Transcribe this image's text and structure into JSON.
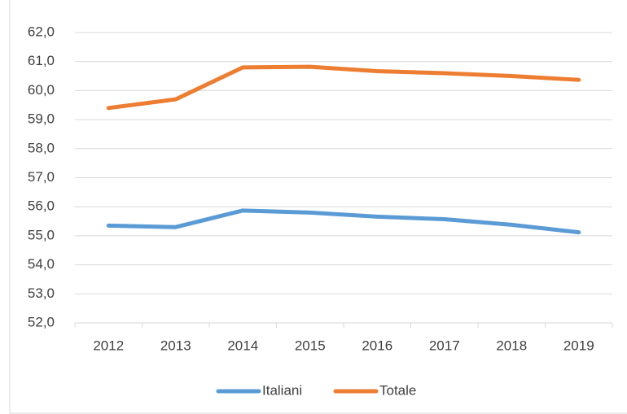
{
  "chart_data": {
    "type": "line",
    "categories": [
      "2012",
      "2013",
      "2014",
      "2015",
      "2016",
      "2017",
      "2018",
      "2019"
    ],
    "series": [
      {
        "name": "Italiani",
        "color": "#5b9bd5",
        "values": [
          55.35,
          55.3,
          55.87,
          55.8,
          55.66,
          55.57,
          55.38,
          55.12
        ]
      },
      {
        "name": "Totale",
        "color": "#ed7d31",
        "values": [
          59.4,
          59.7,
          60.8,
          60.82,
          60.67,
          60.6,
          60.5,
          60.37
        ]
      }
    ],
    "ylim": [
      52,
      62
    ],
    "yticks": [
      {
        "value": 52,
        "label": "52,0"
      },
      {
        "value": 53,
        "label": "53,0"
      },
      {
        "value": 54,
        "label": "54,0"
      },
      {
        "value": 55,
        "label": "55,0"
      },
      {
        "value": 56,
        "label": "56,0"
      },
      {
        "value": 57,
        "label": "57,0"
      },
      {
        "value": 58,
        "label": "58,0"
      },
      {
        "value": 59,
        "label": "59,0"
      },
      {
        "value": 60,
        "label": "60,0"
      },
      {
        "value": 61,
        "label": "61,0"
      },
      {
        "value": 62,
        "label": "62,0"
      }
    ],
    "grid": true
  }
}
